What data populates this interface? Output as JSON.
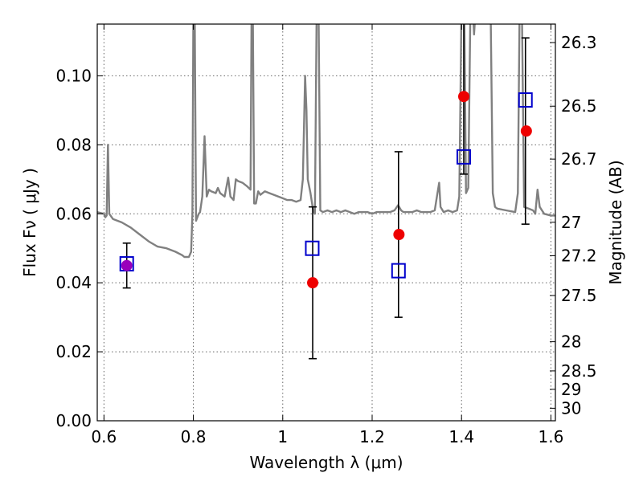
{
  "chart_data": {
    "type": "scatter",
    "title": "",
    "xlabel": "Wavelength  λ (μm)",
    "ylabel": "Flux  Fν  ( μJy )",
    "y2label": "Magnitude (AB)",
    "xlim": [
      0.585,
      1.61
    ],
    "ylim": [
      0.0,
      0.115
    ],
    "x_ticks": [
      "0.6",
      "0.8",
      "1",
      "1.2",
      "1.4",
      "1.6"
    ],
    "y_ticks": [
      "0.00",
      "0.02",
      "0.04",
      "0.06",
      "0.08",
      "0.10"
    ],
    "y2_ticks": [
      {
        "label": "26.3",
        "mag": 26.3
      },
      {
        "label": "26.5",
        "mag": 26.5
      },
      {
        "label": "26.7",
        "mag": 26.7
      },
      {
        "label": "27",
        "mag": 27.0
      },
      {
        "label": "27.2",
        "mag": 27.2
      },
      {
        "label": "27.5",
        "mag": 27.5
      },
      {
        "label": "28",
        "mag": 28.0
      },
      {
        "label": "28.5",
        "mag": 28.5
      },
      {
        "label": "29",
        "mag": 29.0
      },
      {
        "label": "30",
        "mag": 30.0
      }
    ],
    "grid": true,
    "colors": {
      "spectrum": "#808080",
      "observed": "#0000cc",
      "model": "#ee0000",
      "overlap": "#9900bb",
      "errorbar": "#000000"
    },
    "series": [
      {
        "kind": "line",
        "points": [
          [
            0.585,
            0.0605
          ],
          [
            0.6,
            0.06
          ],
          [
            0.603,
            0.059
          ],
          [
            0.606,
            0.0595
          ],
          [
            0.609,
            0.08
          ],
          [
            0.612,
            0.06
          ],
          [
            0.62,
            0.0585
          ],
          [
            0.64,
            0.0575
          ],
          [
            0.66,
            0.056
          ],
          [
            0.68,
            0.054
          ],
          [
            0.7,
            0.052
          ],
          [
            0.72,
            0.0505
          ],
          [
            0.74,
            0.05
          ],
          [
            0.76,
            0.049
          ],
          [
            0.775,
            0.048
          ],
          [
            0.78,
            0.0475
          ],
          [
            0.79,
            0.0475
          ],
          [
            0.795,
            0.049
          ],
          [
            0.798,
            0.06
          ],
          [
            0.8,
            0.12
          ],
          [
            0.803,
            0.12
          ],
          [
            0.806,
            0.058
          ],
          [
            0.812,
            0.06
          ],
          [
            0.815,
            0.0605
          ],
          [
            0.82,
            0.065
          ],
          [
            0.825,
            0.0825
          ],
          [
            0.83,
            0.065
          ],
          [
            0.835,
            0.067
          ],
          [
            0.84,
            0.0665
          ],
          [
            0.85,
            0.066
          ],
          [
            0.855,
            0.0675
          ],
          [
            0.86,
            0.066
          ],
          [
            0.87,
            0.065
          ],
          [
            0.878,
            0.0705
          ],
          [
            0.883,
            0.065
          ],
          [
            0.89,
            0.064
          ],
          [
            0.895,
            0.07
          ],
          [
            0.9,
            0.0695
          ],
          [
            0.91,
            0.069
          ],
          [
            0.92,
            0.068
          ],
          [
            0.928,
            0.067
          ],
          [
            0.93,
            0.115
          ],
          [
            0.933,
            0.12
          ],
          [
            0.936,
            0.063
          ],
          [
            0.94,
            0.063
          ],
          [
            0.945,
            0.0665
          ],
          [
            0.95,
            0.0655
          ],
          [
            0.96,
            0.0665
          ],
          [
            0.97,
            0.066
          ],
          [
            0.98,
            0.0655
          ],
          [
            0.99,
            0.065
          ],
          [
            1.0,
            0.0645
          ],
          [
            1.01,
            0.064
          ],
          [
            1.02,
            0.064
          ],
          [
            1.03,
            0.0635
          ],
          [
            1.04,
            0.064
          ],
          [
            1.045,
            0.07
          ],
          [
            1.05,
            0.1
          ],
          [
            1.053,
            0.09
          ],
          [
            1.056,
            0.07
          ],
          [
            1.062,
            0.066
          ],
          [
            1.068,
            0.061
          ],
          [
            1.072,
            0.06
          ],
          [
            1.076,
            0.12
          ],
          [
            1.08,
            0.12
          ],
          [
            1.084,
            0.061
          ],
          [
            1.09,
            0.0605
          ],
          [
            1.1,
            0.061
          ],
          [
            1.11,
            0.0605
          ],
          [
            1.12,
            0.061
          ],
          [
            1.13,
            0.0605
          ],
          [
            1.14,
            0.061
          ],
          [
            1.15,
            0.0605
          ],
          [
            1.16,
            0.06
          ],
          [
            1.17,
            0.0605
          ],
          [
            1.18,
            0.0605
          ],
          [
            1.19,
            0.0605
          ],
          [
            1.2,
            0.06
          ],
          [
            1.21,
            0.0605
          ],
          [
            1.22,
            0.0605
          ],
          [
            1.23,
            0.0605
          ],
          [
            1.24,
            0.0605
          ],
          [
            1.25,
            0.061
          ],
          [
            1.258,
            0.0625
          ],
          [
            1.265,
            0.061
          ],
          [
            1.27,
            0.0605
          ],
          [
            1.28,
            0.0605
          ],
          [
            1.29,
            0.0605
          ],
          [
            1.3,
            0.061
          ],
          [
            1.31,
            0.0605
          ],
          [
            1.32,
            0.0605
          ],
          [
            1.33,
            0.0605
          ],
          [
            1.34,
            0.061
          ],
          [
            1.345,
            0.065
          ],
          [
            1.35,
            0.069
          ],
          [
            1.353,
            0.062
          ],
          [
            1.36,
            0.0605
          ],
          [
            1.37,
            0.061
          ],
          [
            1.38,
            0.0605
          ],
          [
            1.39,
            0.061
          ],
          [
            1.395,
            0.065
          ],
          [
            1.4,
            0.12
          ],
          [
            1.406,
            0.12
          ],
          [
            1.41,
            0.066
          ],
          [
            1.415,
            0.0675
          ],
          [
            1.42,
            0.12
          ],
          [
            1.425,
            0.12
          ],
          [
            1.428,
            0.112
          ],
          [
            1.432,
            0.12
          ],
          [
            1.465,
            0.12
          ],
          [
            1.47,
            0.066
          ],
          [
            1.475,
            0.062
          ],
          [
            1.48,
            0.0615
          ],
          [
            1.5,
            0.061
          ],
          [
            1.52,
            0.0605
          ],
          [
            1.526,
            0.066
          ],
          [
            1.53,
            0.12
          ],
          [
            1.535,
            0.12
          ],
          [
            1.54,
            0.062
          ],
          [
            1.55,
            0.0615
          ],
          [
            1.56,
            0.061
          ],
          [
            1.565,
            0.06
          ],
          [
            1.57,
            0.067
          ],
          [
            1.575,
            0.062
          ],
          [
            1.585,
            0.06
          ],
          [
            1.6,
            0.0595
          ],
          [
            1.61,
            0.0595
          ]
        ]
      },
      {
        "kind": "squares",
        "x": [
          0.651,
          1.066,
          1.259,
          1.405,
          1.543
        ],
        "y": [
          0.0455,
          0.05,
          0.0435,
          0.0765,
          0.093
        ]
      },
      {
        "kind": "circles",
        "x": [
          0.651,
          1.067,
          1.26,
          1.405,
          1.545
        ],
        "y": [
          0.045,
          0.04,
          0.054,
          0.094,
          0.084
        ]
      },
      {
        "kind": "errorbars",
        "x": [
          0.651,
          1.067,
          1.259,
          1.405,
          1.543
        ],
        "low": [
          0.0385,
          0.018,
          0.03,
          0.0715,
          0.057
        ],
        "high": [
          0.0515,
          0.062,
          0.078,
          0.12,
          0.111
        ]
      }
    ]
  }
}
